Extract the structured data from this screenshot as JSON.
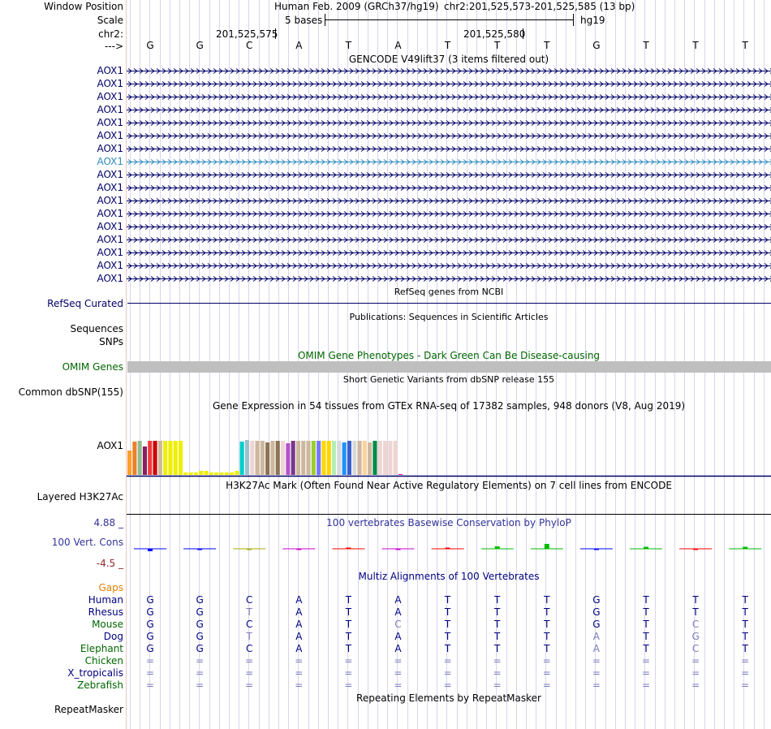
{
  "header": {
    "window_position_label": "Window Position",
    "assembly_text": "Human Feb. 2009 (GRCh37/hg19)",
    "position_text": "chr2:201,525,573-201,525,585 (13 bp)",
    "scale_label": "Scale",
    "scale_text": "5 bases",
    "scale_db": "hg19",
    "chrom_label": "chr2:",
    "coord_ticks": [
      "201,525,575",
      "201,525,580"
    ],
    "strand_label": "--->",
    "bases": [
      "G",
      "G",
      "C",
      "A",
      "T",
      "A",
      "T",
      "T",
      "T",
      "G",
      "T",
      "T",
      "T"
    ]
  },
  "gencode": {
    "title": "GENCODE V49lift37 (3 items filtered out)",
    "items": [
      "AOX1",
      "AOX1",
      "AOX1",
      "AOX1",
      "AOX1",
      "AOX1",
      "AOX1",
      "AOX1",
      "AOX1",
      "AOX1",
      "AOX1",
      "AOX1",
      "AOX1",
      "AOX1",
      "AOX1",
      "AOX1",
      "AOX1"
    ],
    "highlight_index": 7
  },
  "refseq": {
    "title": "RefSeq genes from NCBI",
    "label": "RefSeq Curated"
  },
  "publications": {
    "title": "Publications: Sequences in Scientific Articles",
    "labels": [
      "Sequences",
      "SNPs"
    ]
  },
  "omim": {
    "title": "OMIM Gene Phenotypes - Dark Green Can Be Disease-causing",
    "label": "OMIM Genes"
  },
  "dbsnp": {
    "title": "Short Genetic Variants from dbSNP release 155",
    "label": "Common dbSNP(155)"
  },
  "gtex": {
    "title": "Gene Expression in 54 tissues from GTEx RNA-seq of 17382 samples, 948 donors (V8, Aug 2019)",
    "label": "AOX1",
    "values": [
      30,
      41,
      42,
      35,
      42,
      42,
      42,
      42,
      42,
      42,
      42,
      3,
      3,
      3,
      5,
      5,
      3,
      3,
      3,
      3,
      3,
      5,
      41,
      43,
      42,
      42,
      42,
      40,
      42,
      42,
      42,
      39,
      42,
      42,
      42,
      42,
      42,
      42,
      42,
      42,
      42,
      42,
      40,
      42,
      42,
      42,
      42,
      40,
      42,
      42,
      42,
      42,
      42,
      1
    ],
    "colors": [
      "#ff9f2c",
      "#ee7f29",
      "#8fbc8f",
      "#8b1c62",
      "#ee3b3b",
      "#cc0000",
      "#cdb79e",
      "#eeee00",
      "#eeee00",
      "#eeee00",
      "#eeee00",
      "#eeee00",
      "#eeee00",
      "#eeee00",
      "#eeee00",
      "#eeee00",
      "#eeee00",
      "#eeee00",
      "#eeee00",
      "#eeee00",
      "#eeee00",
      "#eeee00",
      "#00cdcd",
      "#9ac0cd",
      "#eed5d2",
      "#cdb79e",
      "#cdb79e",
      "#8b7355",
      "#cdb79e",
      "#8b7355",
      "#eed5d2",
      "#b452cd",
      "#7a378b",
      "#cdb79e",
      "#cdb79e",
      "#cdb79e",
      "#9acd32",
      "#7777ff",
      "#ffd700",
      "#ffd700",
      "#b4eeb4",
      "#d9d9d9",
      "#1e90ff",
      "#3a5fcd",
      "#d9d9d9",
      "#cdb79e",
      "#ffd39b",
      "#cdb79e",
      "#008b45",
      "#eed5d2",
      "#eed5d2",
      "#eed5d2",
      "#eed5d2",
      "#ff00bb"
    ]
  },
  "h3k27ac": {
    "title": "H3K27Ac Mark (Often Found Near Active Regulatory Elements) on 7 cell lines from ENCODE",
    "label": "Layered H3K27Ac"
  },
  "phylop": {
    "title": "100 vertebrates Basewise Conservation by PhyloP",
    "label": "100 Vert. Cons",
    "max_label": "4.88 _",
    "min_label": "-4.5 _",
    "scores": [
      -0.6,
      -0.3,
      -0.2,
      -0.1,
      0.1,
      -0.2,
      0.1,
      0.6,
      1.2,
      -0.2,
      0.5,
      -0.1,
      0.5
    ],
    "colors": {
      "positive": "#00bb00",
      "negative": "#d00000",
      "base_G": "#0000ff",
      "base_C": "#aaaa00",
      "base_A": "#cc00cc",
      "base_T": "#ff0000"
    }
  },
  "multiz": {
    "title": "Multiz Alignments of 100 Vertebrates",
    "gaps_label": "Gaps",
    "rows": [
      {
        "species": "Human",
        "bases": [
          "G",
          "G",
          "C",
          "A",
          "T",
          "A",
          "T",
          "T",
          "T",
          "G",
          "T",
          "T",
          "T"
        ],
        "diff": [
          0,
          0,
          0,
          0,
          0,
          0,
          0,
          0,
          0,
          0,
          0,
          0,
          0
        ]
      },
      {
        "species": "Rhesus",
        "bases": [
          "G",
          "G",
          "T",
          "A",
          "T",
          "A",
          "T",
          "T",
          "T",
          "G",
          "T",
          "T",
          "T"
        ],
        "diff": [
          0,
          0,
          1,
          0,
          0,
          0,
          0,
          0,
          0,
          0,
          0,
          0,
          0
        ]
      },
      {
        "species": "Mouse",
        "bases": [
          "G",
          "G",
          "C",
          "A",
          "T",
          "C",
          "T",
          "T",
          "T",
          "G",
          "T",
          "C",
          "T"
        ],
        "diff": [
          0,
          0,
          0,
          0,
          0,
          1,
          0,
          0,
          0,
          0,
          0,
          1,
          0
        ]
      },
      {
        "species": "Dog",
        "bases": [
          "G",
          "G",
          "T",
          "A",
          "T",
          "A",
          "T",
          "T",
          "T",
          "A",
          "T",
          "G",
          "T"
        ],
        "diff": [
          0,
          0,
          1,
          0,
          0,
          0,
          0,
          0,
          0,
          1,
          0,
          1,
          0
        ]
      },
      {
        "species": "Elephant",
        "bases": [
          "G",
          "G",
          "C",
          "A",
          "T",
          "A",
          "T",
          "T",
          "T",
          "A",
          "T",
          "C",
          "T"
        ],
        "diff": [
          0,
          0,
          0,
          0,
          0,
          0,
          0,
          0,
          0,
          1,
          0,
          1,
          0
        ]
      },
      {
        "species": "Chicken",
        "bases": [
          "=",
          "=",
          "=",
          "=",
          "=",
          "=",
          "=",
          "=",
          "=",
          "=",
          "=",
          "=",
          "="
        ],
        "diff": [
          1,
          1,
          1,
          1,
          1,
          1,
          1,
          1,
          1,
          1,
          1,
          1,
          1
        ]
      },
      {
        "species": "X_tropicalis",
        "bases": [
          "=",
          "=",
          "=",
          "=",
          "=",
          "=",
          "=",
          "=",
          "=",
          "=",
          "=",
          "=",
          "="
        ],
        "diff": [
          1,
          1,
          1,
          1,
          1,
          1,
          1,
          1,
          1,
          1,
          1,
          1,
          1
        ]
      },
      {
        "species": "Zebrafish",
        "bases": [
          "=",
          "=",
          "=",
          "=",
          "=",
          "=",
          "=",
          "=",
          "=",
          "=",
          "=",
          "=",
          "="
        ],
        "diff": [
          1,
          1,
          1,
          1,
          1,
          1,
          1,
          1,
          1,
          1,
          1,
          1,
          1
        ]
      }
    ]
  },
  "repeatmasker": {
    "title": "Repeating Elements by RepeatMasker",
    "label": "RepeatMasker"
  },
  "colors": {
    "track_label": "#000066",
    "link_blue": "#000080",
    "omim_green": "#006600",
    "gaps_orange": "#e08000",
    "highlight": "#2e8bbd"
  }
}
